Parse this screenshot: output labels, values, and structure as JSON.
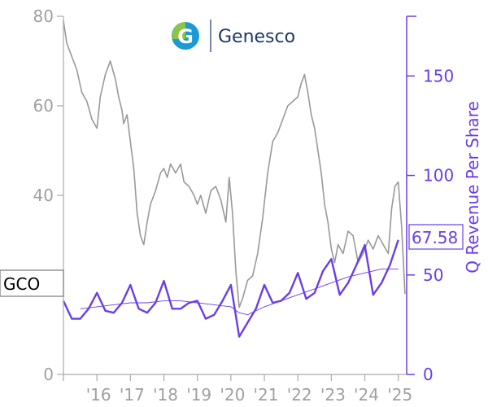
{
  "logo": {
    "text": "Genesco",
    "mark": "G",
    "colors": [
      "#1a9bd7",
      "#8cc63f",
      "#1f3864"
    ]
  },
  "ticker_label": "GCO",
  "last_revenue_label": "67.58",
  "colors": {
    "price": "#999999",
    "revenue": "#6a3ee8",
    "trend": "#6a3ee8",
    "axis_left": "#aaaaaa"
  },
  "chart_data": {
    "type": "line",
    "x_tick_labels": [
      "'16",
      "'17",
      "'18",
      "'19",
      "'20",
      "'21",
      "'22",
      "'23",
      "'24",
      "'25"
    ],
    "x_tick_years": [
      2016,
      2017,
      2018,
      2019,
      2020,
      2021,
      2022,
      2023,
      2024,
      2025
    ],
    "xlim": [
      2015.0,
      2025.25
    ],
    "left_axis": {
      "ticks": [
        0,
        20,
        40,
        60,
        80
      ],
      "tick_labels": [
        "0",
        "",
        "40",
        "60",
        "80"
      ],
      "ylim": [
        0,
        80
      ]
    },
    "right_axis": {
      "label": "Q Revenue Per Share",
      "ticks": [
        0,
        50,
        100,
        150
      ],
      "tick_labels": [
        "0",
        "50",
        "100",
        "150"
      ],
      "ylim": [
        0,
        180
      ]
    },
    "series": [
      {
        "name": "GCO",
        "axis": "left",
        "x": [
          2015.0,
          2015.1,
          2015.25,
          2015.4,
          2015.55,
          2015.7,
          2015.85,
          2016.0,
          2016.1,
          2016.25,
          2016.4,
          2016.55,
          2016.65,
          2016.75,
          2016.8,
          2016.9,
          2017.0,
          2017.1,
          2017.2,
          2017.3,
          2017.4,
          2017.5,
          2017.6,
          2017.75,
          2017.9,
          2018.0,
          2018.1,
          2018.2,
          2018.35,
          2018.5,
          2018.6,
          2018.75,
          2018.9,
          2019.0,
          2019.1,
          2019.25,
          2019.4,
          2019.55,
          2019.7,
          2019.85,
          2019.95,
          2020.05,
          2020.15,
          2020.25,
          2020.35,
          2020.5,
          2020.65,
          2020.8,
          2020.95,
          2021.1,
          2021.25,
          2021.4,
          2021.55,
          2021.7,
          2021.85,
          2022.0,
          2022.1,
          2022.2,
          2022.3,
          2022.4,
          2022.5,
          2022.6,
          2022.7,
          2022.8,
          2022.9,
          2023.0,
          2023.1,
          2023.2,
          2023.35,
          2023.5,
          2023.65,
          2023.8,
          2023.95,
          2024.1,
          2024.25,
          2024.4,
          2024.55,
          2024.7,
          2024.8,
          2024.9,
          2025.0,
          2025.1,
          2025.2
        ],
        "values": [
          79,
          74,
          71,
          68,
          63,
          61,
          57,
          55,
          62,
          67,
          70,
          66,
          62,
          59,
          56,
          58,
          52,
          46,
          36,
          31,
          29,
          34,
          38,
          41,
          45,
          46,
          44,
          47,
          45,
          47,
          43,
          42,
          40,
          38,
          40,
          36,
          41,
          42,
          39,
          34,
          44,
          36,
          23,
          15,
          17,
          21,
          22,
          27,
          35,
          45,
          52,
          54,
          57,
          60,
          61,
          62,
          65,
          67,
          63,
          58,
          55,
          50,
          45,
          38,
          34,
          28,
          25,
          29,
          27,
          32,
          31,
          25,
          27,
          30,
          28,
          31,
          29,
          27,
          37,
          42,
          43,
          33,
          18
        ]
      },
      {
        "name": "Q Revenue Per Share",
        "axis": "right",
        "x": [
          2015.0,
          2015.25,
          2015.5,
          2015.75,
          2016.0,
          2016.25,
          2016.5,
          2016.75,
          2017.0,
          2017.25,
          2017.5,
          2017.75,
          2018.0,
          2018.25,
          2018.5,
          2018.75,
          2019.0,
          2019.25,
          2019.5,
          2019.75,
          2020.0,
          2020.25,
          2020.5,
          2020.75,
          2021.0,
          2021.25,
          2021.5,
          2021.75,
          2022.0,
          2022.25,
          2022.5,
          2022.75,
          2023.0,
          2023.25,
          2023.5,
          2023.75,
          2024.0,
          2024.25,
          2024.5,
          2024.75,
          2025.0
        ],
        "values": [
          37,
          28,
          28,
          33,
          41,
          32,
          31,
          36,
          45,
          33,
          31,
          36,
          47,
          33,
          33,
          36,
          37,
          28,
          30,
          37,
          45,
          19,
          26,
          33,
          45,
          36,
          37,
          41,
          51,
          38,
          41,
          52,
          58,
          40,
          46,
          55,
          65,
          40,
          46,
          55,
          67.58
        ]
      },
      {
        "name": "Trend",
        "axis": "right",
        "x": [
          2015.5,
          2016.0,
          2016.5,
          2017.0,
          2017.5,
          2018.0,
          2018.5,
          2019.0,
          2019.5,
          2020.0,
          2020.25,
          2020.5,
          2021.0,
          2021.5,
          2022.0,
          2022.5,
          2023.0,
          2023.5,
          2024.0,
          2024.5,
          2025.0
        ],
        "values": [
          33,
          34,
          35,
          36,
          36,
          37,
          37,
          36,
          35,
          34,
          31,
          30,
          34,
          37,
          40,
          43,
          46,
          49,
          51,
          53,
          53
        ]
      }
    ]
  }
}
